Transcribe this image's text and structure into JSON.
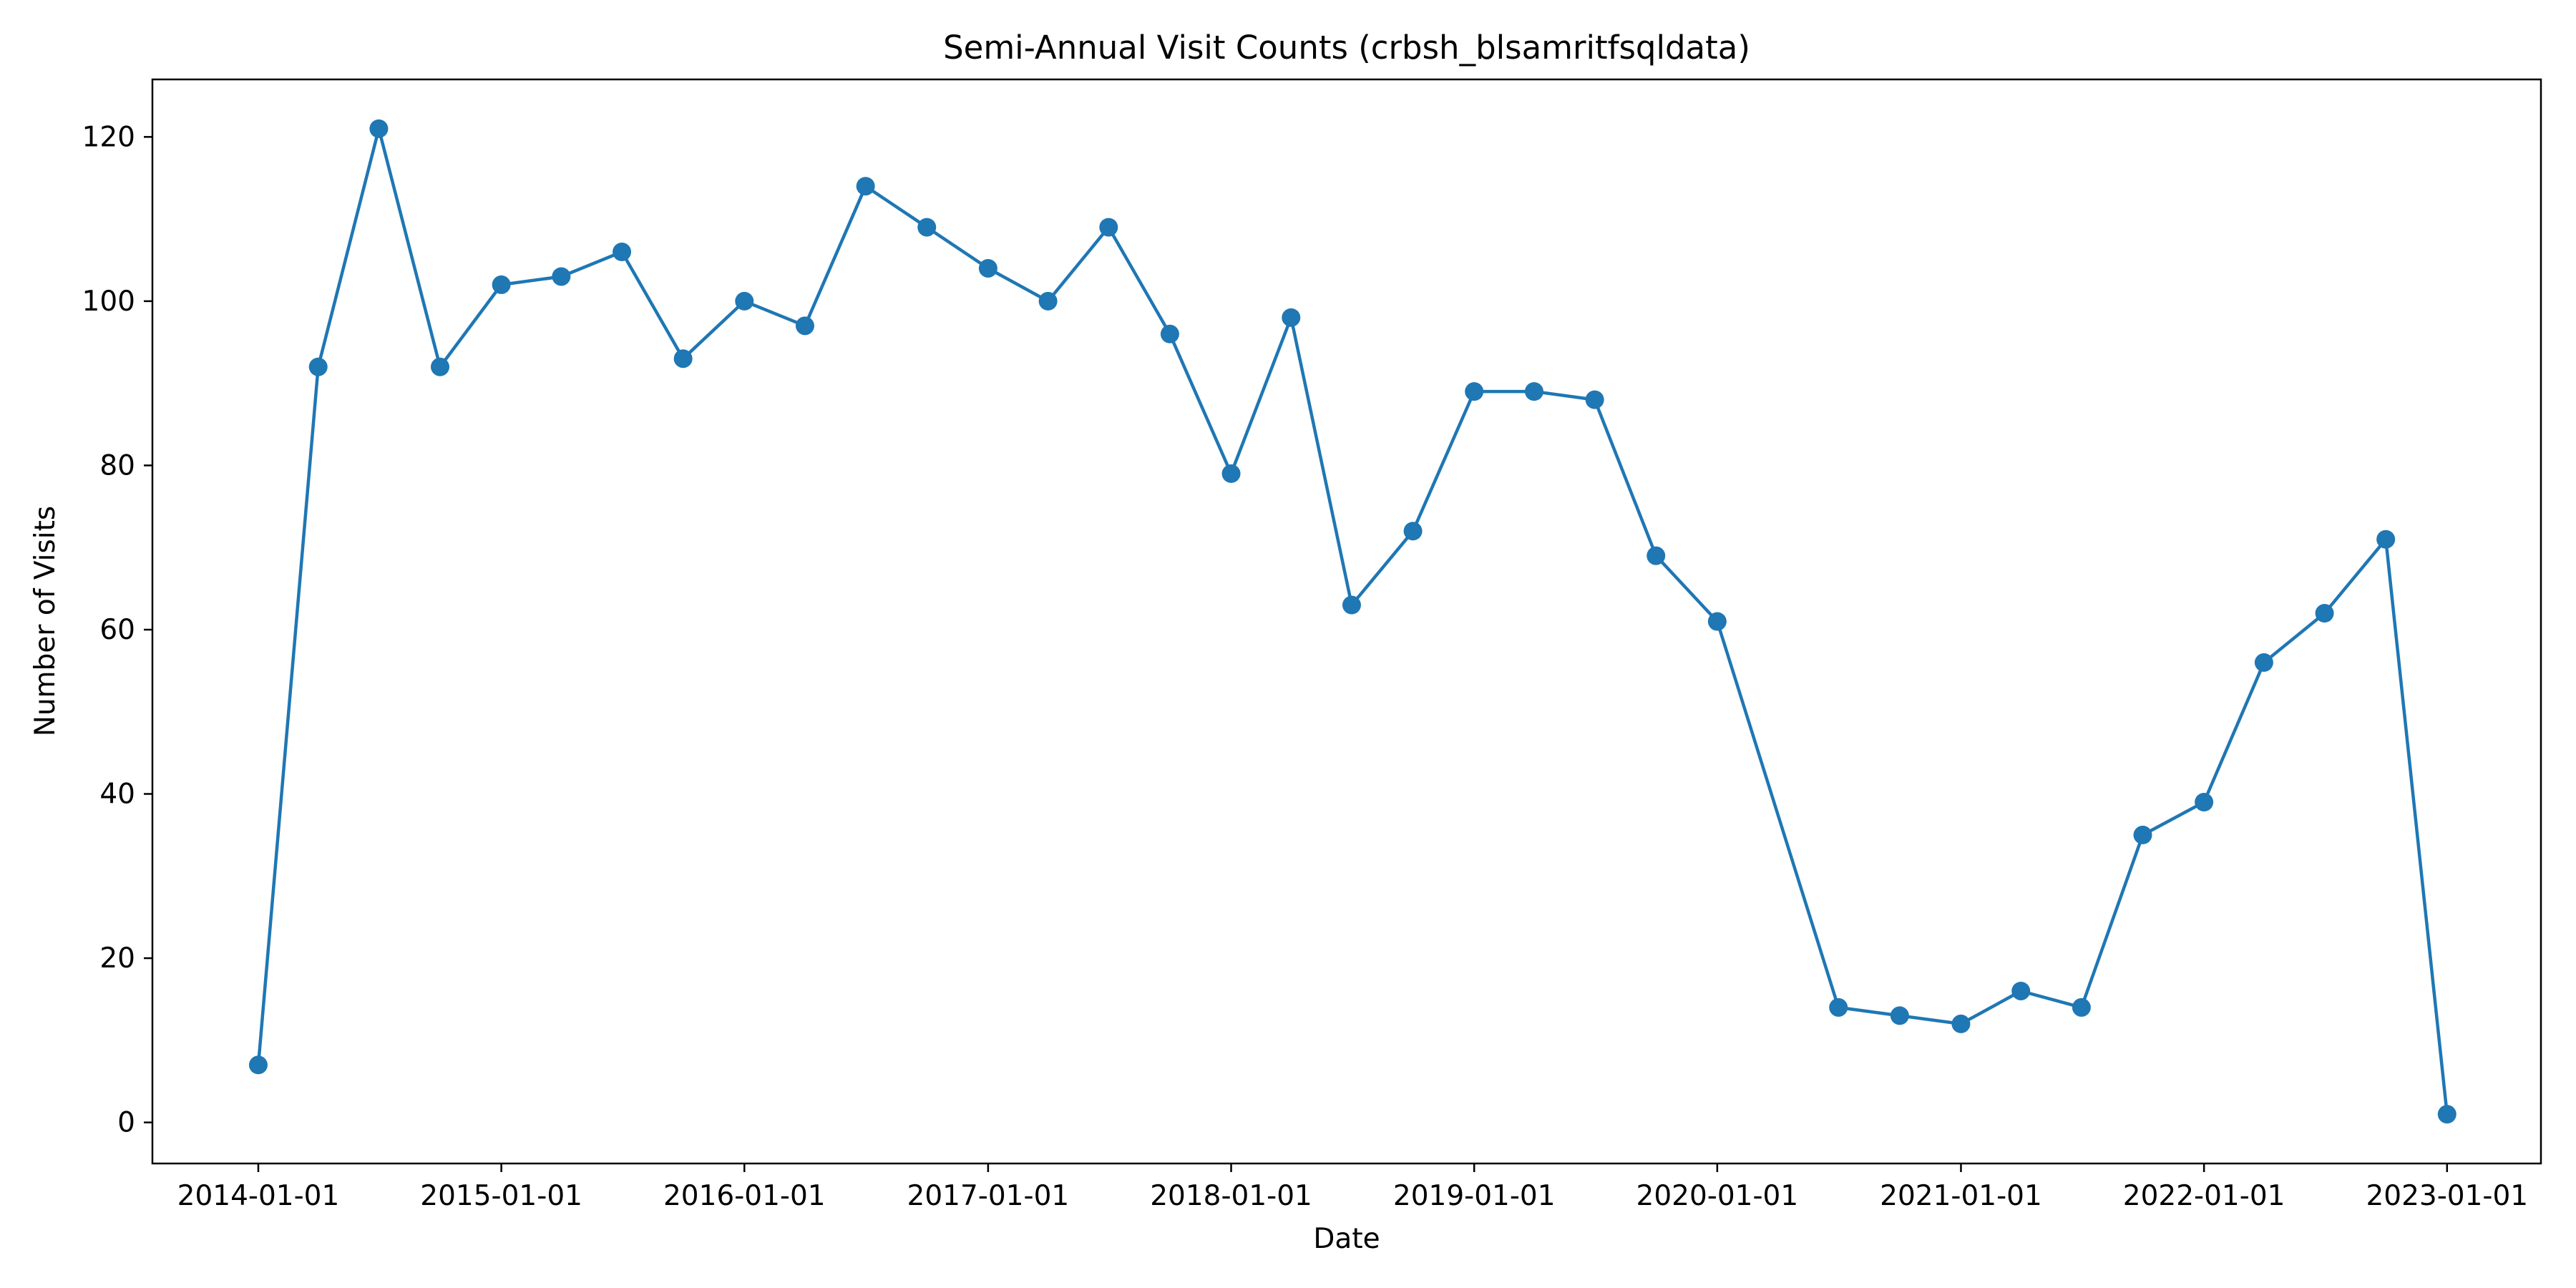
{
  "chart_data": {
    "type": "line",
    "title": "Semi-Annual Visit Counts (crbsh_blsamritfsqldata)",
    "xlabel": "Date",
    "ylabel": "Number of Visits",
    "x_tick_labels": [
      "2014-01-01",
      "2015-01-01",
      "2016-01-01",
      "2017-01-01",
      "2018-01-01",
      "2019-01-01",
      "2020-01-01",
      "2021-01-01",
      "2022-01-01",
      "2023-01-01"
    ],
    "y_ticks": [
      0,
      20,
      40,
      60,
      80,
      100,
      120
    ],
    "ylim": [
      -5,
      127
    ],
    "xlim": [
      "2013-07-26",
      "2023-05-22"
    ],
    "grid": false,
    "series": [
      {
        "color": "#1f77b4",
        "marker": "circle",
        "points": [
          {
            "x": "2014-01-01",
            "y": 7
          },
          {
            "x": "2014-04-01",
            "y": 92
          },
          {
            "x": "2014-07-01",
            "y": 121
          },
          {
            "x": "2014-10-01",
            "y": 92
          },
          {
            "x": "2015-01-01",
            "y": 102
          },
          {
            "x": "2015-04-01",
            "y": 103
          },
          {
            "x": "2015-07-01",
            "y": 106
          },
          {
            "x": "2015-10-01",
            "y": 93
          },
          {
            "x": "2016-01-01",
            "y": 100
          },
          {
            "x": "2016-04-01",
            "y": 97
          },
          {
            "x": "2016-07-01",
            "y": 114
          },
          {
            "x": "2016-10-01",
            "y": 109
          },
          {
            "x": "2017-01-01",
            "y": 104
          },
          {
            "x": "2017-04-01",
            "y": 100
          },
          {
            "x": "2017-07-01",
            "y": 109
          },
          {
            "x": "2017-10-01",
            "y": 96
          },
          {
            "x": "2018-01-01",
            "y": 79
          },
          {
            "x": "2018-04-01",
            "y": 98
          },
          {
            "x": "2018-07-01",
            "y": 63
          },
          {
            "x": "2018-10-01",
            "y": 72
          },
          {
            "x": "2019-01-01",
            "y": 89
          },
          {
            "x": "2019-04-01",
            "y": 89
          },
          {
            "x": "2019-07-01",
            "y": 88
          },
          {
            "x": "2019-10-01",
            "y": 69
          },
          {
            "x": "2020-01-01",
            "y": 61
          },
          {
            "x": "2020-07-01",
            "y": 14
          },
          {
            "x": "2020-10-01",
            "y": 13
          },
          {
            "x": "2021-01-01",
            "y": 12
          },
          {
            "x": "2021-04-01",
            "y": 16
          },
          {
            "x": "2021-07-01",
            "y": 14
          },
          {
            "x": "2021-10-01",
            "y": 35
          },
          {
            "x": "2022-01-01",
            "y": 39
          },
          {
            "x": "2022-04-01",
            "y": 56
          },
          {
            "x": "2022-07-01",
            "y": 62
          },
          {
            "x": "2022-10-01",
            "y": 71
          },
          {
            "x": "2023-01-01",
            "y": 1
          }
        ]
      }
    ]
  }
}
